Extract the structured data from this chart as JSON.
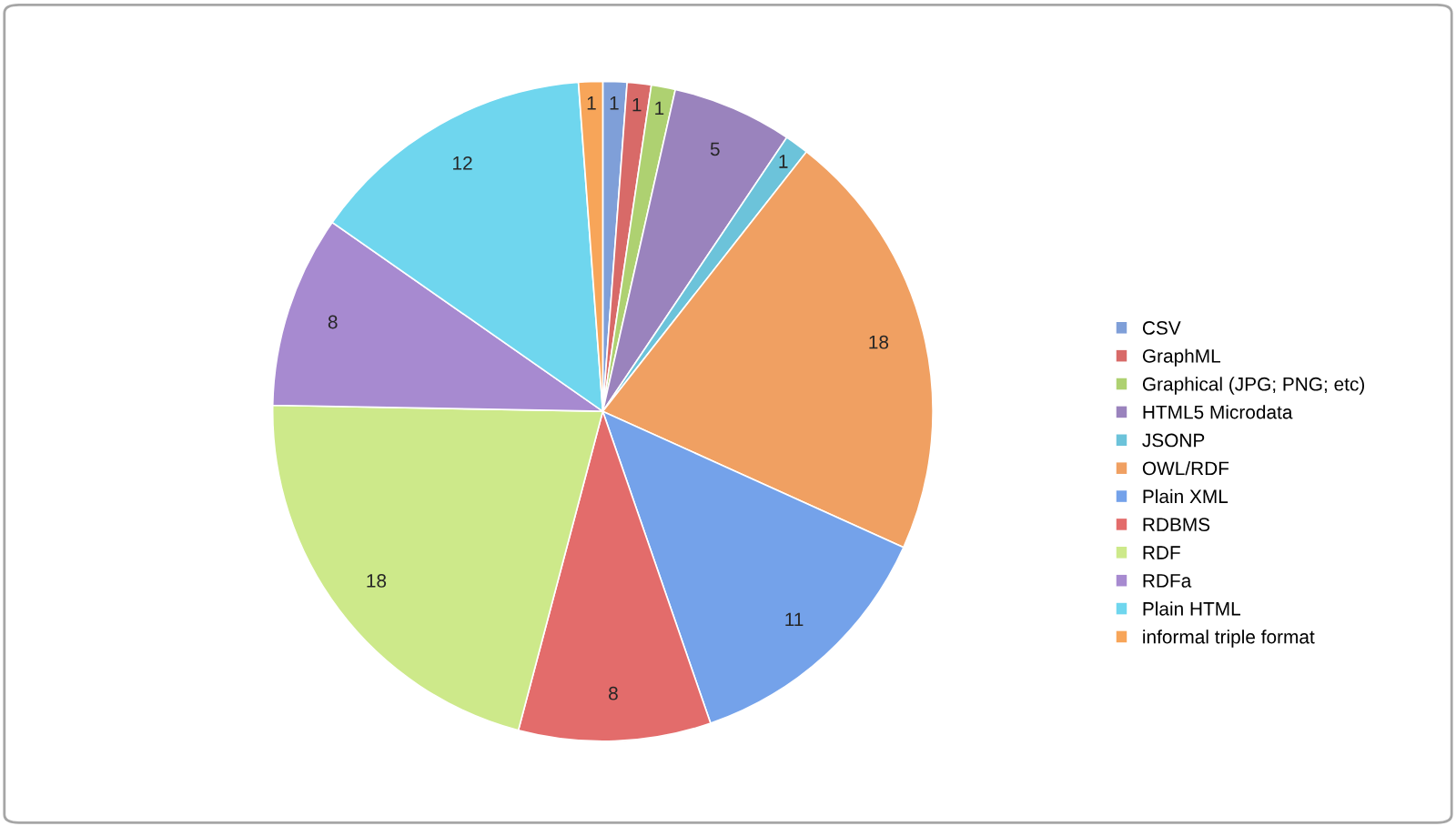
{
  "chart_data": {
    "type": "pie",
    "categories": [
      "CSV",
      "GraphML",
      "Graphical (JPG; PNG; etc)",
      "HTML5 Microdata",
      "JSONP",
      "OWL/RDF",
      "Plain XML",
      "RDBMS",
      "RDF",
      "RDFa",
      "Plain HTML",
      "informal triple format"
    ],
    "values": [
      1,
      1,
      1,
      5,
      1,
      18,
      11,
      8,
      18,
      8,
      12,
      1
    ],
    "colors": [
      "#7f9fd8",
      "#d86a68",
      "#aed171",
      "#9a83bd",
      "#6cc3da",
      "#f0a062",
      "#74a2ea",
      "#e36c6b",
      "#cde98a",
      "#a78ad0",
      "#6fd6ee",
      "#f7a559"
    ],
    "data_labels": true,
    "legend": "right"
  }
}
